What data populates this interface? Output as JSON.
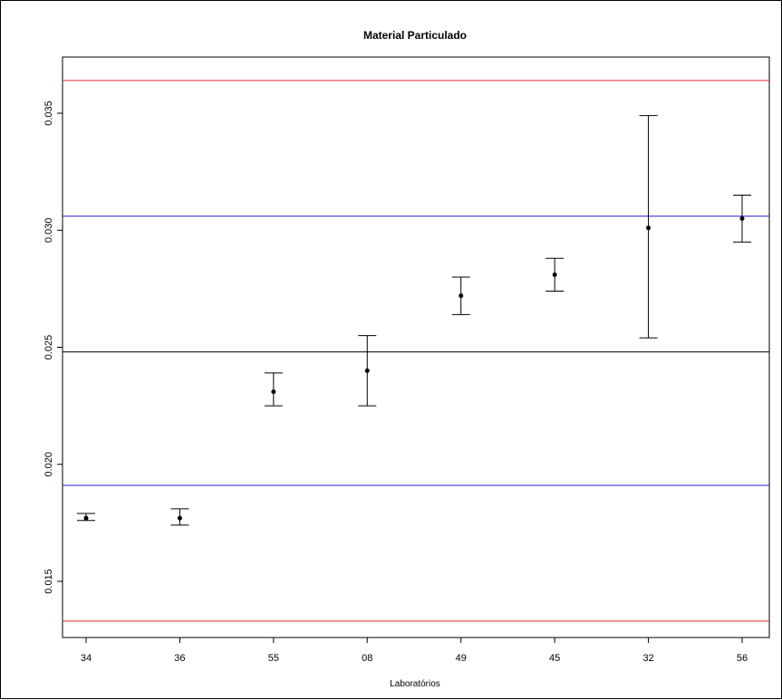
{
  "chart_data": {
    "type": "scatter",
    "title": "Material Particulado",
    "xlabel": "Laboratórios",
    "ylabel": "",
    "categories": [
      "34",
      "36",
      "55",
      "08",
      "49",
      "45",
      "32",
      "56"
    ],
    "series": [
      {
        "values": [
          0.0177,
          0.0177,
          0.0231,
          0.024,
          0.0272,
          0.0281,
          0.0301,
          0.0305
        ],
        "lower": [
          0.0176,
          0.0174,
          0.0225,
          0.0225,
          0.0264,
          0.0274,
          0.0254,
          0.0295
        ],
        "upper": [
          0.0179,
          0.0181,
          0.0239,
          0.0255,
          0.028,
          0.0288,
          0.0349,
          0.0315
        ],
        "error_bars": true
      }
    ],
    "reference_lines": [
      {
        "value": 0.0364,
        "color": "#e8262b"
      },
      {
        "value": 0.0306,
        "color": "#1f1fc8"
      },
      {
        "value": 0.0248,
        "color": "#000000"
      },
      {
        "value": 0.0191,
        "color": "#1f1fc8"
      },
      {
        "value": 0.0133,
        "color": "#e8262b"
      }
    ],
    "yticks": [
      "0.015",
      "0.020",
      "0.025",
      "0.030",
      "0.035"
    ],
    "ylim": [
      0.0126,
      0.0374
    ],
    "grid": false
  }
}
